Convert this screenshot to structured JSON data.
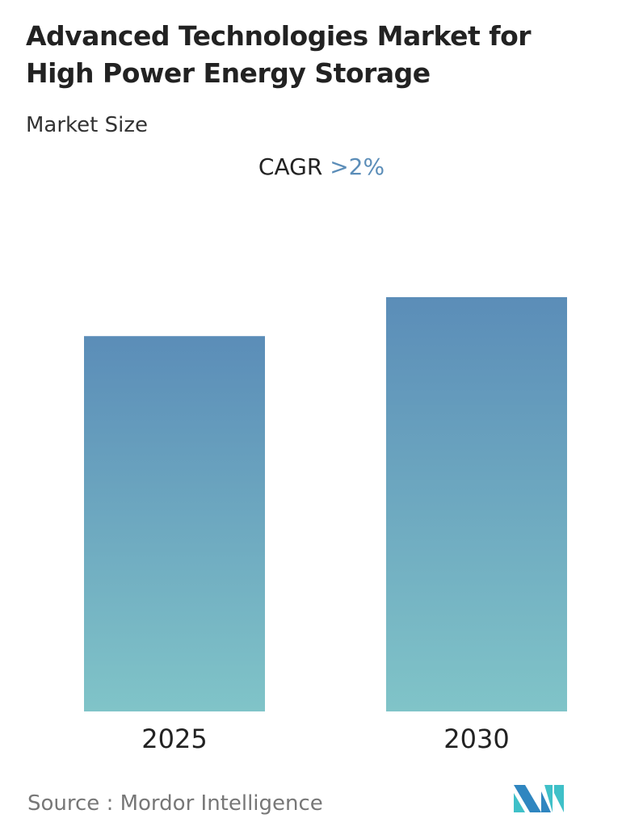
{
  "title_line1": "Advanced Technologies Market for",
  "title_line2": "High Power Energy Storage",
  "subtitle": "Market Size",
  "cagr_label": "CAGR",
  "cagr_value": ">2%",
  "source": "Source :  Mordor Intelligence",
  "colors": {
    "bar_top": "#5b8db8",
    "bar_bottom": "#80c4c8",
    "accent": "#5b8db8"
  },
  "chart_data": {
    "type": "bar",
    "categories": [
      "2025",
      "2030"
    ],
    "values": [
      90.6,
      100
    ],
    "title": "Market Size",
    "xlabel": "",
    "ylabel": "",
    "grid": false
  }
}
